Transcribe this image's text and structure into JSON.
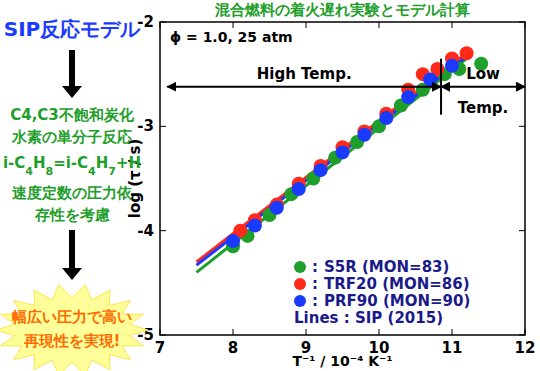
{
  "chart_data": {
    "type": "scatter",
    "title": "混合燃料の着火遅れ実験とモデル計算",
    "x_label": "T⁻¹ / 10⁻⁴ K⁻¹",
    "y_label": "log (τ / s)",
    "xlim": [
      7,
      12
    ],
    "ylim": [
      -5,
      -2
    ],
    "xticks": [
      7,
      8,
      9,
      10,
      11,
      12
    ],
    "yticks": [
      -5,
      -4,
      -3,
      -2
    ],
    "grid": false,
    "legend": "lower right",
    "legend_separator": ":",
    "marker": "circle",
    "annotation": "ϕ = 1.0, 25 atm",
    "regions": [
      {
        "label": "High Temp.",
        "from": 7.1,
        "to": 10.85,
        "y": -2.62
      },
      {
        "label": "Low Temp.",
        "from": 10.85,
        "to": 12,
        "y": -2.62
      }
    ],
    "series": [
      {
        "name": "S5R (MON=83)",
        "color": "#1e9e2a",
        "x": [
          8.0,
          8.2,
          8.5,
          8.8,
          9.1,
          9.4,
          9.7,
          10.0,
          10.3,
          10.6,
          10.9,
          11.1,
          11.4
        ],
        "values": [
          -4.15,
          -4.05,
          -3.85,
          -3.65,
          -3.5,
          -3.3,
          -3.15,
          -3.0,
          -2.8,
          -2.65,
          -2.5,
          -2.45,
          -2.4
        ]
      },
      {
        "name": "TRF20 (MON=86)",
        "color": "#ff2a1a",
        "x": [
          8.1,
          8.3,
          8.6,
          8.9,
          9.2,
          9.5,
          9.8,
          10.1,
          10.4,
          10.6,
          10.8,
          11.0,
          11.2
        ],
        "values": [
          -4.0,
          -3.9,
          -3.75,
          -3.55,
          -3.38,
          -3.2,
          -3.05,
          -2.88,
          -2.65,
          -2.5,
          -2.45,
          -2.35,
          -2.3
        ]
      },
      {
        "name": "PRF90 (MON=90)",
        "color": "#1a3aff",
        "x": [
          8.0,
          8.3,
          8.6,
          8.9,
          9.2,
          9.5,
          9.8,
          10.1,
          10.4,
          10.7,
          11.0
        ],
        "values": [
          -4.1,
          -3.95,
          -3.78,
          -3.6,
          -3.42,
          -3.25,
          -3.08,
          -2.92,
          -2.72,
          -2.55,
          -2.42
        ]
      }
    ],
    "model_label": "Lines : SIP (2015)",
    "model_lines": [
      {
        "color": "#1e9e2a",
        "line_style": "solid",
        "x": [
          7.5,
          11.2
        ],
        "values": [
          -4.4,
          -2.35
        ]
      },
      {
        "color": "#ff2a1a",
        "line_style": "solid",
        "x": [
          7.5,
          11.2
        ],
        "values": [
          -4.3,
          -2.3
        ]
      },
      {
        "color": "#1a3aff",
        "line_style": "solid",
        "x": [
          7.5,
          11.2
        ],
        "values": [
          -4.33,
          -2.33
        ]
      }
    ],
    "panel": {
      "heading": "SIP反応モデル",
      "step1": [
        "C4,C3不飽和炭化",
        "水素の単分子反応"
      ],
      "reaction": "i-C4H8=i-C4H7+H",
      "step2": [
        "速度定数の圧力依",
        "存性を考慮"
      ],
      "result": [
        "幅広い圧力で高い",
        "再現性を実現!"
      ]
    }
  }
}
